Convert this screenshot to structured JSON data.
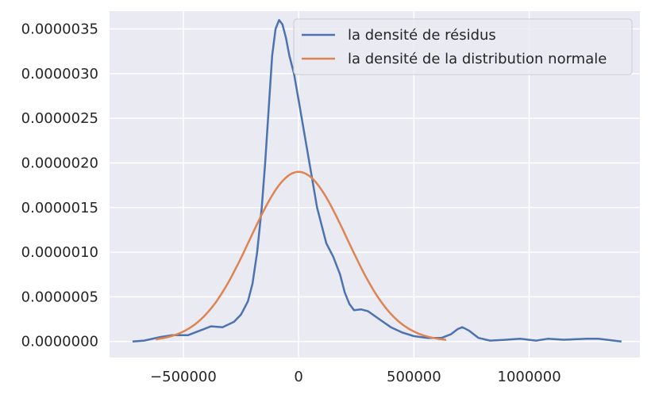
{
  "chart_data": {
    "type": "line",
    "title": "",
    "xlabel": "",
    "ylabel": "",
    "xlim": [
      -820000,
      1480000
    ],
    "ylim": [
      -1.8e-07,
      3.7e-06
    ],
    "x_ticks": [
      -500000,
      0,
      500000,
      1000000
    ],
    "x_tick_labels": [
      "−500000",
      "0",
      "500000",
      "1000000"
    ],
    "y_ticks": [
      0.0,
      5e-07,
      1e-06,
      1.5e-06,
      2e-06,
      2.5e-06,
      3e-06,
      3.5e-06
    ],
    "y_tick_labels": [
      "0.0000000",
      "0.0000005",
      "0.0000010",
      "0.0000015",
      "0.0000020",
      "0.0000025",
      "0.0000030",
      "0.0000035"
    ],
    "grid": true,
    "legend_position": "top-right",
    "series": [
      {
        "name": "la densité de résidus",
        "color": "#4c72b0",
        "points": [
          [
            -720000,
            0.0
          ],
          [
            -670000,
            1e-08
          ],
          [
            -600000,
            5e-08
          ],
          [
            -550000,
            7e-08
          ],
          [
            -480000,
            7e-08
          ],
          [
            -430000,
            1.2e-07
          ],
          [
            -380000,
            1.7e-07
          ],
          [
            -330000,
            1.6e-07
          ],
          [
            -280000,
            2.2e-07
          ],
          [
            -250000,
            3e-07
          ],
          [
            -220000,
            4.5e-07
          ],
          [
            -200000,
            6.5e-07
          ],
          [
            -180000,
            1e-06
          ],
          [
            -160000,
            1.5e-06
          ],
          [
            -145000,
            2e-06
          ],
          [
            -130000,
            2.6e-06
          ],
          [
            -115000,
            3.2e-06
          ],
          [
            -100000,
            3.5e-06
          ],
          [
            -85000,
            3.6e-06
          ],
          [
            -70000,
            3.55e-06
          ],
          [
            -55000,
            3.4e-06
          ],
          [
            -40000,
            3.2e-06
          ],
          [
            -20000,
            3e-06
          ],
          [
            0,
            2.7e-06
          ],
          [
            20000,
            2.4e-06
          ],
          [
            40000,
            2.1e-06
          ],
          [
            60000,
            1.8e-06
          ],
          [
            80000,
            1.5e-06
          ],
          [
            100000,
            1.3e-06
          ],
          [
            120000,
            1.1e-06
          ],
          [
            150000,
            9.5e-07
          ],
          [
            180000,
            7.5e-07
          ],
          [
            200000,
            5.5e-07
          ],
          [
            220000,
            4.2e-07
          ],
          [
            240000,
            3.5e-07
          ],
          [
            270000,
            3.6e-07
          ],
          [
            300000,
            3.4e-07
          ],
          [
            350000,
            2.5e-07
          ],
          [
            400000,
            1.6e-07
          ],
          [
            450000,
            1e-07
          ],
          [
            500000,
            6e-08
          ],
          [
            560000,
            4e-08
          ],
          [
            620000,
            4e-08
          ],
          [
            660000,
            8e-08
          ],
          [
            690000,
            1.4e-07
          ],
          [
            710000,
            1.6e-07
          ],
          [
            740000,
            1.2e-07
          ],
          [
            780000,
            4e-08
          ],
          [
            830000,
            1e-08
          ],
          [
            900000,
            2e-08
          ],
          [
            960000,
            3e-08
          ],
          [
            1030000,
            1e-08
          ],
          [
            1080000,
            3e-08
          ],
          [
            1150000,
            2e-08
          ],
          [
            1250000,
            3e-08
          ],
          [
            1300000,
            3e-08
          ],
          [
            1400000,
            0.0
          ]
        ]
      },
      {
        "name": "la densité de la distribution normale",
        "color": "#dd8452",
        "mean": 0,
        "std": 210000,
        "x_range": [
          -620000,
          640000
        ]
      }
    ]
  }
}
